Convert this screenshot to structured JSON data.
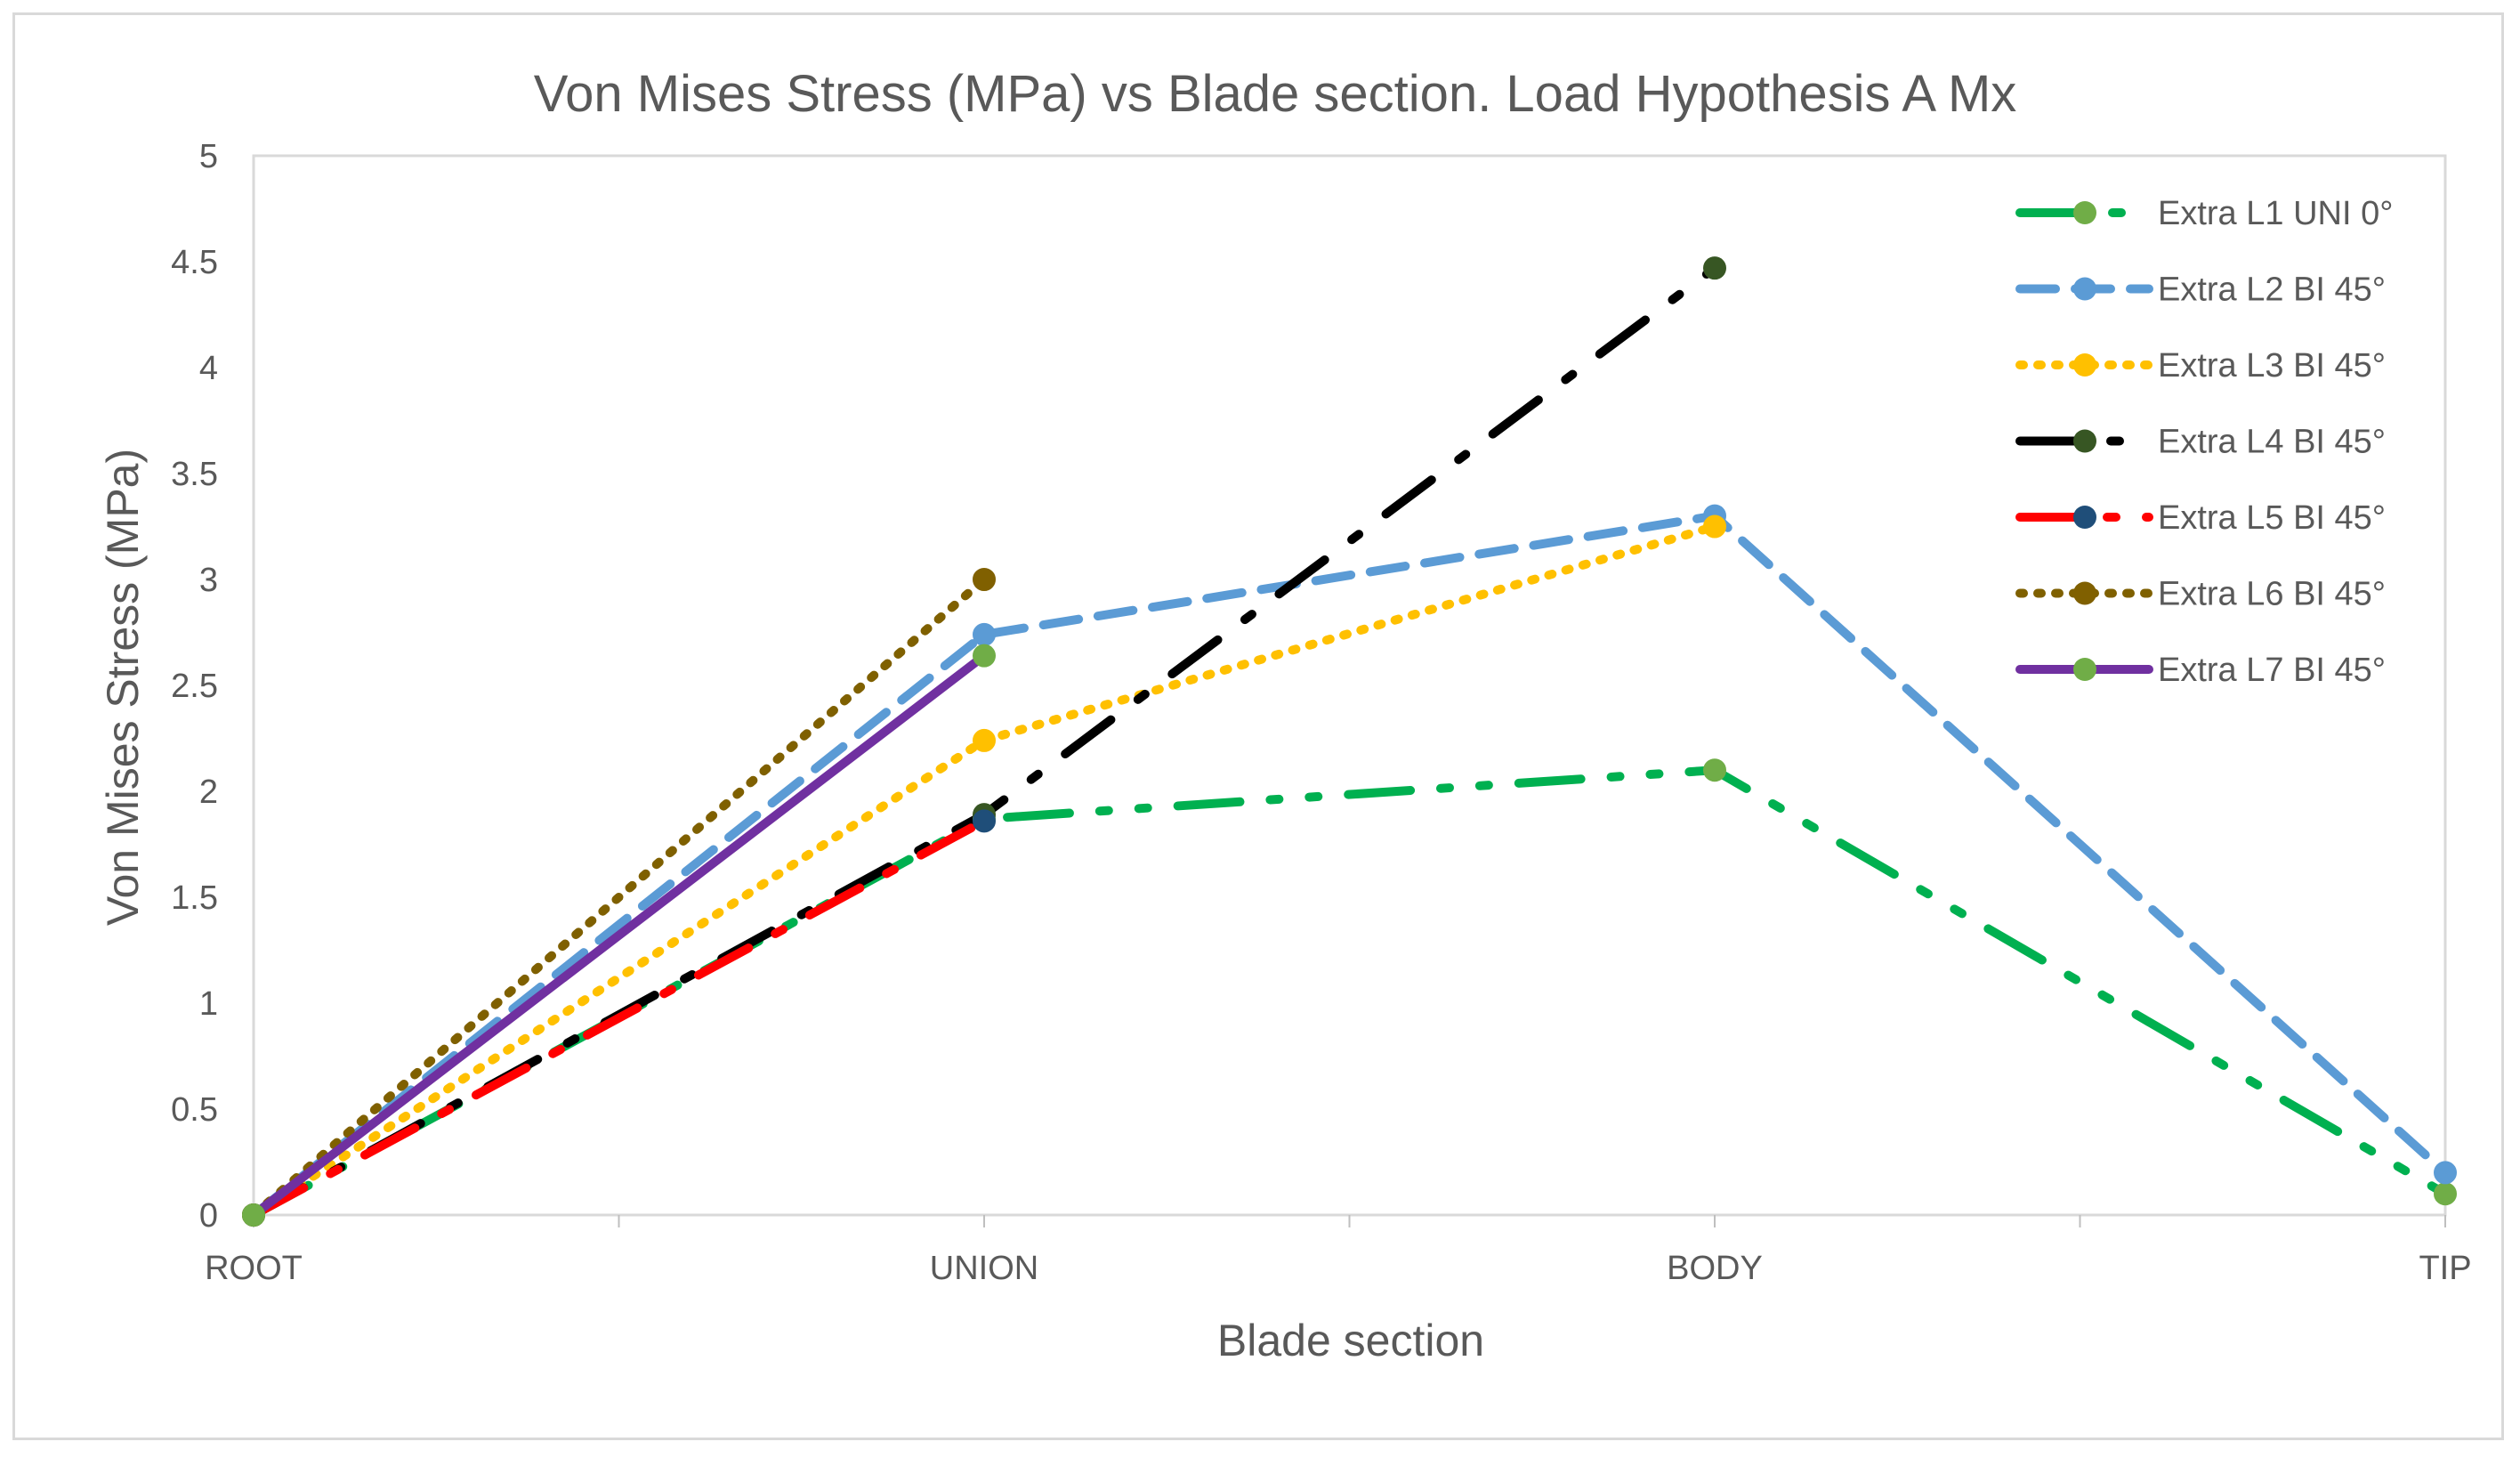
{
  "chart_data": {
    "type": "line",
    "title": "Von Mises Stress (MPa) vs Blade section. Load Hypothesis A Mx",
    "xlabel": "Blade section",
    "ylabel": "Von Mises Stress (MPa)",
    "categories": [
      "ROOT",
      "UNION",
      "BODY",
      "TIP"
    ],
    "ylim": [
      0,
      5
    ],
    "yticks": [
      "0",
      "0.5",
      "1",
      "1.5",
      "2",
      "2.5",
      "3",
      "3.5",
      "4",
      "4.5",
      "5"
    ],
    "grid": false,
    "legend_position": "right",
    "series": [
      {
        "name": "Extra L1 UNI 0°",
        "values": [
          0,
          1.87,
          2.1,
          0.1
        ],
        "color": "#00b050",
        "marker": "#70ad47",
        "dash": "70 34 10 34 10 34"
      },
      {
        "name": "Extra L2 BI 45°",
        "values": [
          0,
          2.74,
          3.3,
          0.2
        ],
        "color": "#5b9bd5",
        "marker": "#5b9bd5",
        "dash": "40 22"
      },
      {
        "name": "Extra L3 BI 45°",
        "values": [
          0,
          2.24,
          3.25,
          null
        ],
        "color": "#ffc000",
        "marker": "#ffc000",
        "dash": "4 16"
      },
      {
        "name": "Extra L4 BI 45°",
        "values": [
          0,
          1.89,
          4.47,
          null
        ],
        "color": "#000000",
        "marker": "#375623",
        "dash": "64 38 10 38"
      },
      {
        "name": "Extra L5 BI 45°",
        "values": [
          0,
          1.86,
          null,
          null
        ],
        "color": "#ff0000",
        "marker": "#1f4e79",
        "dash": "64 34 10 34"
      },
      {
        "name": "Extra L6 BI 45°",
        "values": [
          0,
          3.0,
          null,
          null
        ],
        "color": "#7f6000",
        "marker": "#806000",
        "dash": "4 16"
      },
      {
        "name": "Extra L7 BI 45°",
        "values": [
          0,
          2.64,
          null,
          null
        ],
        "color": "#7030a0",
        "marker": "#70ad47",
        "dash": ""
      }
    ]
  }
}
